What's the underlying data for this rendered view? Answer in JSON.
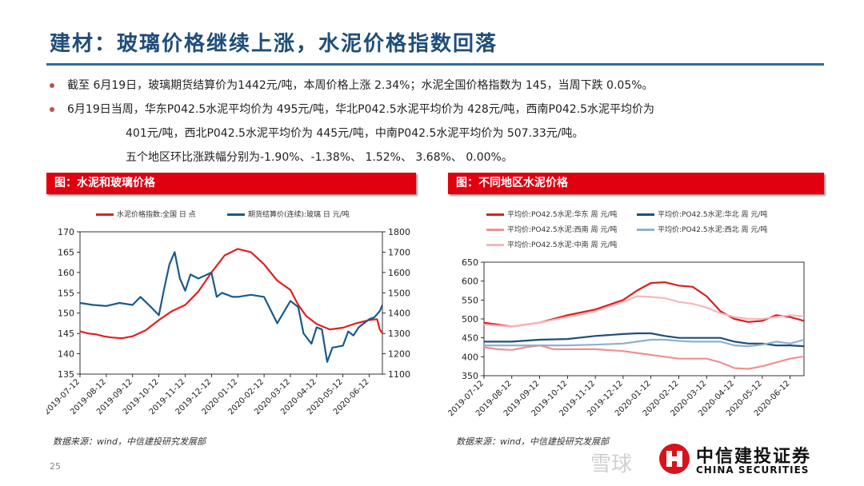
{
  "title": "建材：玻璃价格继续上涨，水泥价格指数回落",
  "bullets": [
    "截至  6月19日，玻璃期货结算价为1442元/吨，本周价格上涨  2.34%；水泥全国价格指数为 145，当周下跌 0.05%。",
    "6月19日当周，华东P042.5水泥平均价为 495元/吨，华北P042.5水泥平均价为   428元/吨，西南P042.5水泥平均价为",
    "401元/吨，西北P042.5水泥平均价为 445元/吨，中南P042.5水泥平均价为 507.33元/吨。",
    "五个地区环比涨跌幅分别为-1.90%、-1.38%、 1.52%、 3.68%、 0.00%。"
  ],
  "left_panel": {
    "heading": "图：水泥和玻璃价格",
    "source": "数据来源：wind，中信建投研究发展部"
  },
  "right_panel": {
    "heading": "图：不同地区水泥价格",
    "source": "数据来源：wind，中信建投研究发展部"
  },
  "page_number": "25",
  "logo": {
    "cn": "中信建投证券",
    "en": "CHINA SECURITIES"
  },
  "watermark": "雪球",
  "chart_data": [
    {
      "type": "line",
      "x_ticks": [
        "2019-07-12",
        "2019-08-12",
        "2019-09-12",
        "2019-10-12",
        "2019-11-12",
        "2019-12-12",
        "2020-01-12",
        "2020-02-12",
        "2020-03-12",
        "2020-04-12",
        "2020-05-12",
        "2020-06-12"
      ],
      "ylim": [
        135,
        170
      ],
      "y_ticks": [
        135,
        140,
        145,
        150,
        155,
        160,
        165,
        170
      ],
      "y2lim": [
        1100,
        1800
      ],
      "y2_ticks": [
        1100,
        1200,
        1300,
        1400,
        1500,
        1600,
        1700,
        1800
      ],
      "series": [
        {
          "name": "水泥价格指数:全国 日 点",
          "axis": "left",
          "color": "#e02020",
          "x": [
            0,
            0.3,
            0.6,
            0.9,
            1.2,
            1.6,
            2.0,
            2.5,
            3.0,
            3.5,
            4.0,
            4.5,
            5.0,
            5.5,
            6.0,
            6.5,
            7.0,
            7.5,
            8.0,
            8.3,
            8.6,
            9.0,
            9.5,
            10.0,
            10.5,
            11.0,
            11.3,
            11.4,
            11.5
          ],
          "y": [
            145.5,
            145,
            144.8,
            144.3,
            144,
            143.8,
            144.3,
            145.8,
            148.3,
            150.5,
            152,
            155.3,
            160,
            164.2,
            165.8,
            165,
            162,
            158,
            155.7,
            152,
            149.3,
            147.3,
            146,
            146.4,
            147.5,
            148.3,
            148.5,
            146,
            145
          ]
        },
        {
          "name": "期货结算价(连续):玻璃 日 元/吨",
          "axis": "right",
          "color": "#1a5a8a",
          "x": [
            0,
            0.5,
            1.0,
            1.5,
            2.0,
            2.3,
            2.7,
            3.0,
            3.2,
            3.4,
            3.6,
            3.8,
            4.0,
            4.2,
            4.5,
            5.0,
            5.2,
            5.4,
            5.6,
            5.8,
            6.0,
            6.5,
            7.0,
            7.5,
            8.0,
            8.3,
            8.5,
            8.8,
            9.0,
            9.2,
            9.4,
            9.6,
            10.0,
            10.2,
            10.4,
            10.6,
            10.8,
            11.0,
            11.2,
            11.4,
            11.5
          ],
          "y": [
            1450,
            1440,
            1435,
            1450,
            1440,
            1480,
            1430,
            1390,
            1520,
            1640,
            1700,
            1570,
            1510,
            1590,
            1570,
            1600,
            1480,
            1500,
            1490,
            1480,
            1480,
            1490,
            1480,
            1350,
            1460,
            1430,
            1300,
            1250,
            1330,
            1320,
            1160,
            1230,
            1240,
            1310,
            1290,
            1330,
            1350,
            1370,
            1380,
            1410,
            1440
          ]
        }
      ]
    },
    {
      "type": "line",
      "x_ticks": [
        "2019-07-12",
        "2019-08-12",
        "2019-09-12",
        "2019-10-12",
        "2019-11-12",
        "2019-12-12",
        "2020-01-12",
        "2020-02-12",
        "2020-03-12",
        "2020-04-12",
        "2020-05-12",
        "2020-06-12"
      ],
      "ylim": [
        350,
        650
      ],
      "y_ticks": [
        350,
        400,
        450,
        500,
        550,
        600,
        650
      ],
      "series": [
        {
          "name": "平均价:PO42.5水泥:华东 周 元/吨",
          "color": "#d62020",
          "x": [
            0,
            1,
            2,
            3,
            4,
            5,
            5.5,
            6,
            6.5,
            7,
            7.5,
            8,
            8.5,
            9,
            9.5,
            10,
            10.5,
            11,
            11.5
          ],
          "y": [
            490,
            480,
            490,
            510,
            525,
            550,
            575,
            595,
            597,
            588,
            585,
            560,
            520,
            500,
            492,
            495,
            510,
            505,
            495
          ]
        },
        {
          "name": "平均价:PO42.5水泥:华北 周 元/吨",
          "color": "#1f4e79",
          "x": [
            0,
            1,
            2,
            3,
            4,
            5,
            5.5,
            6,
            6.5,
            7,
            7.5,
            8,
            8.5,
            9,
            9.5,
            10,
            10.5,
            11,
            11.5
          ],
          "y": [
            440,
            440,
            445,
            447,
            455,
            460,
            462,
            462,
            455,
            450,
            450,
            450,
            450,
            440,
            435,
            435,
            430,
            430,
            428
          ]
        },
        {
          "name": "平均价:PO42.5水泥:西南 周 元/吨",
          "color": "#f09090",
          "x": [
            0,
            0.5,
            1,
            1.5,
            2,
            2.5,
            3,
            4,
            5,
            5.5,
            6,
            6.5,
            7,
            7.5,
            8,
            8.5,
            9,
            9.5,
            10,
            10.5,
            11,
            11.5
          ],
          "y": [
            425,
            420,
            418,
            425,
            430,
            420,
            420,
            420,
            415,
            410,
            405,
            400,
            395,
            395,
            395,
            385,
            370,
            368,
            375,
            385,
            395,
            401
          ]
        },
        {
          "name": "平均价:PO42.5水泥:西北 周 元/吨",
          "color": "#8fb0cc",
          "x": [
            0,
            1,
            2,
            3,
            4,
            5,
            5.5,
            6,
            6.5,
            7,
            7.5,
            8,
            8.5,
            9,
            9.5,
            10,
            10.5,
            11,
            11.5
          ],
          "y": [
            430,
            430,
            430,
            430,
            432,
            435,
            440,
            445,
            445,
            442,
            440,
            440,
            440,
            430,
            428,
            432,
            440,
            435,
            445
          ]
        },
        {
          "name": "平均价:PO42.5水泥:中南 周 元/吨",
          "color": "#f5b8b8",
          "x": [
            0,
            1,
            2,
            3,
            4,
            5,
            5.5,
            6,
            6.5,
            7,
            7.5,
            8,
            8.5,
            9,
            9.5,
            10,
            10.5,
            11,
            11.5
          ],
          "y": [
            485,
            480,
            490,
            505,
            520,
            545,
            560,
            558,
            555,
            545,
            540,
            530,
            515,
            505,
            500,
            500,
            505,
            510,
            507
          ]
        }
      ]
    }
  ]
}
